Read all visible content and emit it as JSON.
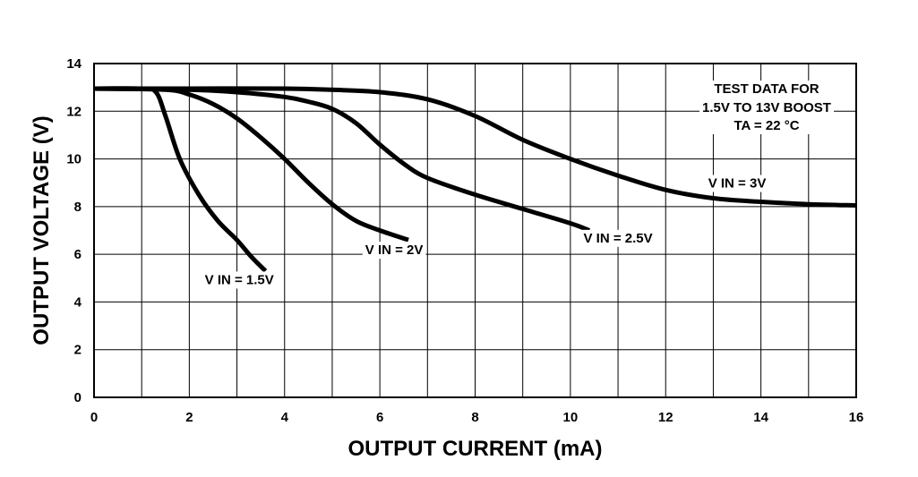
{
  "chart_data": {
    "type": "line",
    "xlabel": "OUTPUT CURRENT (mA)",
    "ylabel": "OUTPUT VOLTAGE (V)",
    "xlim": [
      0,
      16
    ],
    "ylim": [
      0,
      14
    ],
    "xticks": [
      0,
      2,
      4,
      6,
      8,
      10,
      12,
      14,
      16
    ],
    "yticks": [
      0,
      2,
      4,
      6,
      8,
      10,
      12,
      14
    ],
    "grid": true,
    "annotation_lines": [
      "TEST DATA FOR",
      "1.5V TO 13V BOOST",
      "TA = 22 °C"
    ],
    "series": [
      {
        "name": "V IN = 1.5V",
        "x": [
          0,
          1.0,
          1.3,
          1.5,
          1.8,
          2.2,
          2.6,
          3.0,
          3.3,
          3.6
        ],
        "y": [
          12.95,
          12.95,
          12.8,
          11.8,
          10.0,
          8.5,
          7.4,
          6.6,
          5.9,
          5.3
        ]
      },
      {
        "name": "V IN = 2V",
        "x": [
          0,
          1.5,
          2.0,
          2.5,
          3.0,
          3.5,
          4.0,
          4.5,
          5.0,
          5.5,
          6.0,
          6.6
        ],
        "y": [
          12.95,
          12.9,
          12.7,
          12.3,
          11.7,
          10.9,
          10.0,
          9.0,
          8.1,
          7.4,
          7.0,
          6.6
        ]
      },
      {
        "name": "V IN = 2.5V",
        "x": [
          0,
          2,
          3,
          4,
          4.5,
          5.0,
          5.5,
          6.0,
          6.5,
          7.0,
          8.0,
          9.0,
          10.0,
          10.4
        ],
        "y": [
          12.95,
          12.9,
          12.8,
          12.6,
          12.4,
          12.1,
          11.5,
          10.6,
          9.8,
          9.2,
          8.5,
          7.9,
          7.3,
          7.0
        ]
      },
      {
        "name": "V IN = 3V",
        "x": [
          0,
          2,
          4,
          5,
          6,
          7,
          8,
          9,
          10,
          11,
          12,
          13,
          14,
          15,
          16
        ],
        "y": [
          12.95,
          12.95,
          12.95,
          12.9,
          12.8,
          12.5,
          11.8,
          10.8,
          10.0,
          9.3,
          8.7,
          8.35,
          8.2,
          8.1,
          8.05
        ]
      }
    ],
    "label_positions_data": [
      {
        "series": 0,
        "x": 3.05,
        "y": 4.75
      },
      {
        "series": 1,
        "x": 6.3,
        "y": 6.0
      },
      {
        "series": 2,
        "x": 11.0,
        "y": 6.5
      },
      {
        "series": 3,
        "x": 13.5,
        "y": 8.8
      }
    ]
  }
}
